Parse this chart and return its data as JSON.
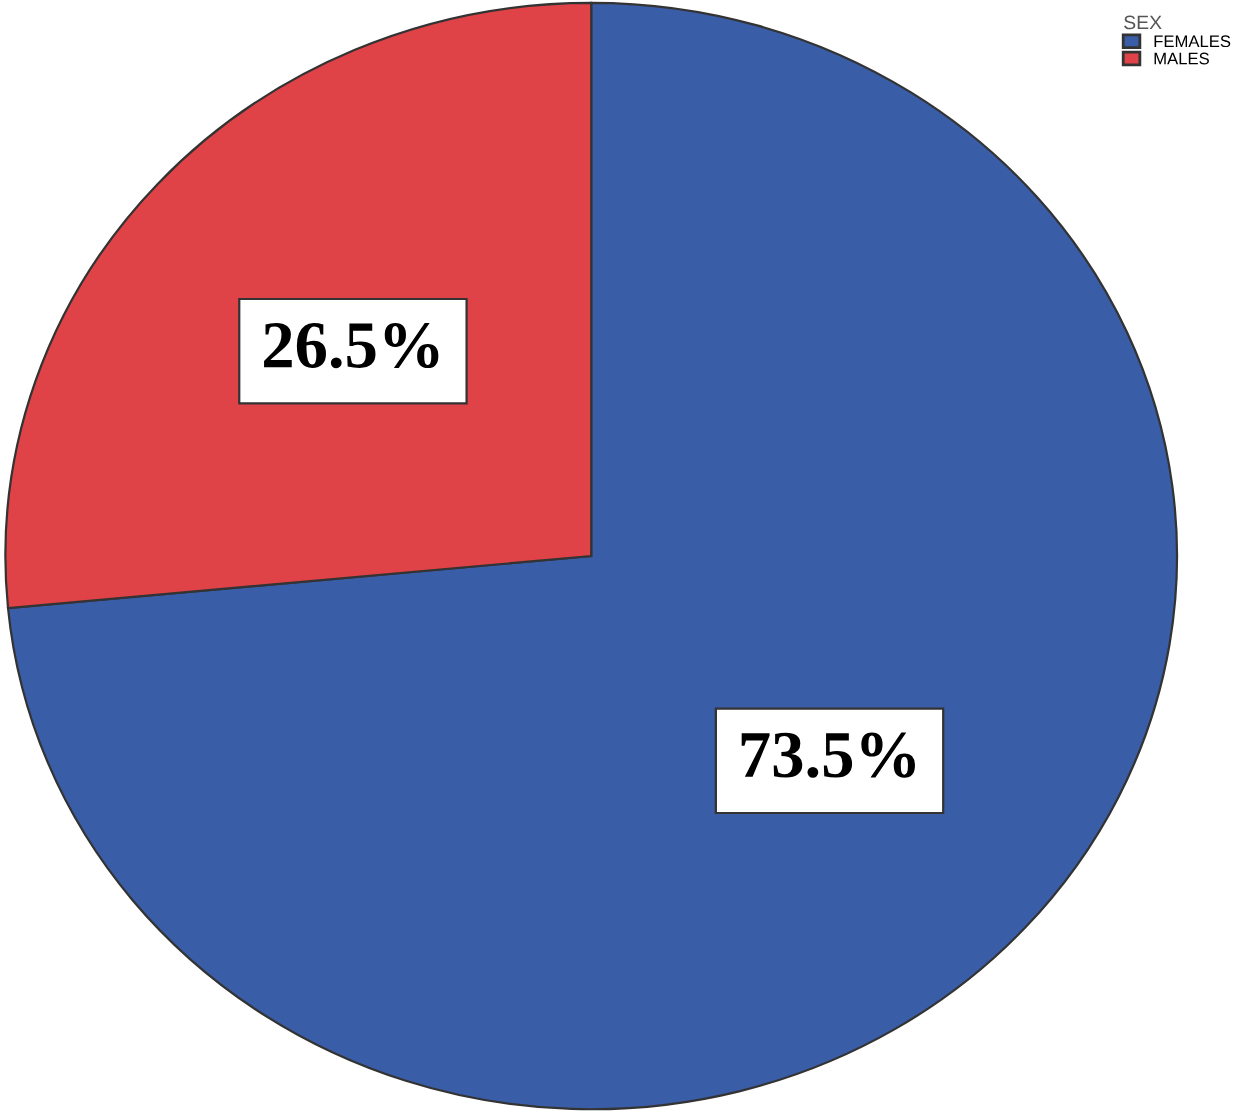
{
  "chart_data": {
    "type": "pie",
    "legend_title": "SEX",
    "categories": [
      "FEMALES",
      "MALES"
    ],
    "values": [
      73.5,
      26.5
    ],
    "colors": [
      "#3a5da8",
      "#e04347"
    ],
    "value_labels": [
      "73.5%",
      "26.5%"
    ],
    "legend": "top right"
  }
}
